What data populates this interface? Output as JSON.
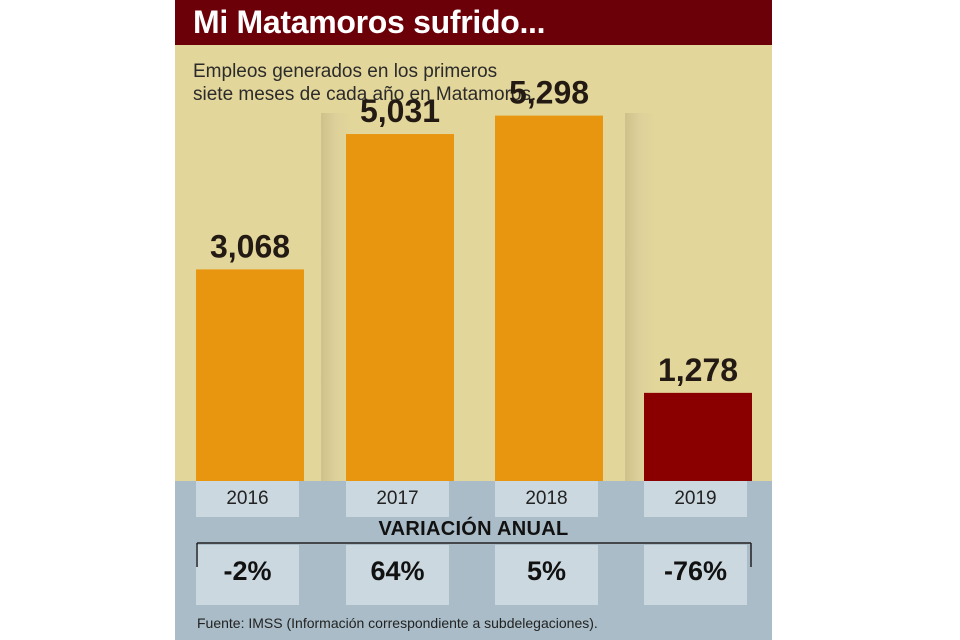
{
  "header": {
    "title": "Mi Matamoros sufrido..."
  },
  "subtitle_lines": [
    "Empleos generados en los primeros",
    "siete meses de cada año en Matamoros."
  ],
  "chart_data": {
    "type": "bar",
    "categories": [
      "2016",
      "2017",
      "2018",
      "2019"
    ],
    "values": [
      3068,
      5031,
      5298,
      1278
    ],
    "value_labels": [
      "3,068",
      "5,031",
      "5,298",
      "1,278"
    ],
    "ylim": [
      0,
      5800
    ],
    "grid": false,
    "colors": [
      "#e8960f",
      "#e8960f",
      "#e8960f",
      "#8a0000"
    ]
  },
  "variation": {
    "title": "VARIACIÓN ANUAL",
    "values": [
      "-2%",
      "64%",
      "5%",
      "-76%"
    ]
  },
  "footer": {
    "source": "Fuente: IMSS (Información correspondiente a subdelegaciones)."
  }
}
